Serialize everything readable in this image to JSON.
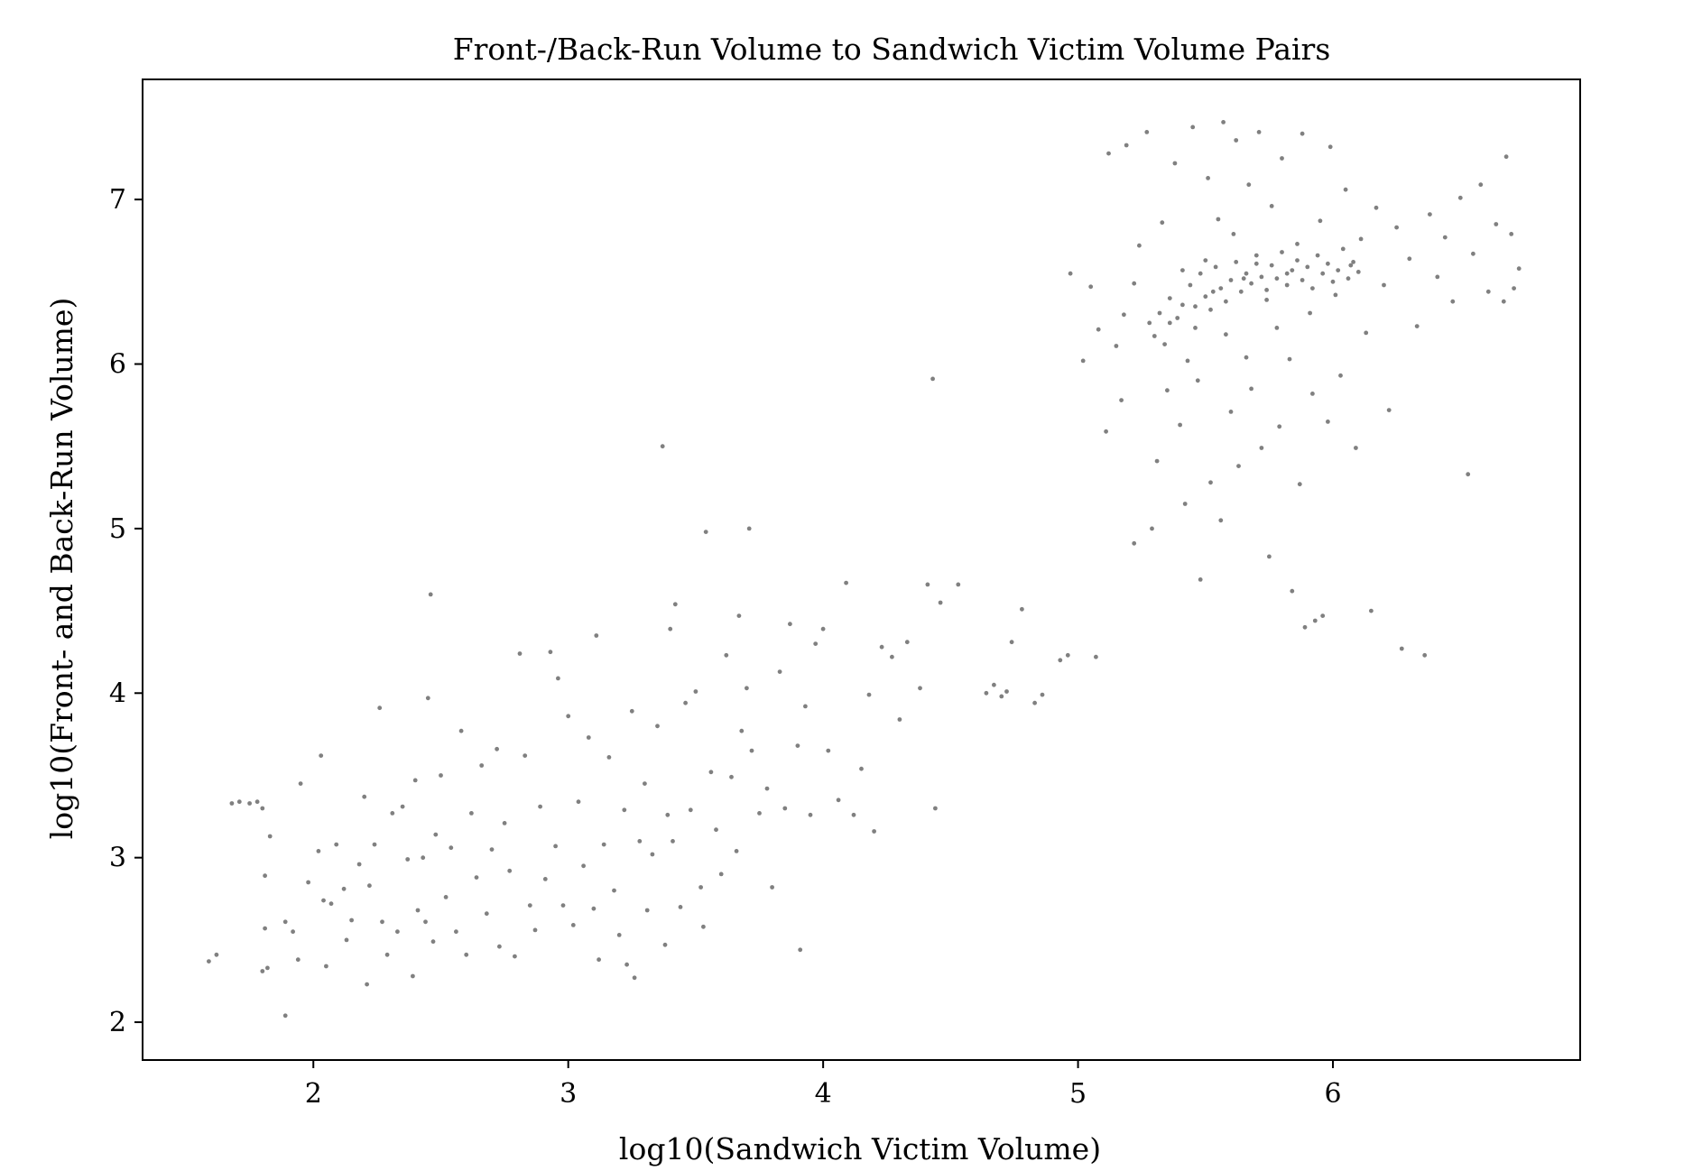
{
  "chart_data": {
    "type": "scatter",
    "title": "Front-/Back-Run Volume to Sandwich Victim Volume Pairs",
    "xlabel": "log10(Sandwich Victim Volume)",
    "ylabel": "log10(Front- and Back-Run Volume)",
    "xlim": [
      1.33,
      6.97
    ],
    "ylim": [
      1.77,
      7.73
    ],
    "xticks": [
      2,
      3,
      4,
      5,
      6
    ],
    "yticks": [
      2,
      3,
      4,
      5,
      6,
      7
    ],
    "grid": false,
    "legend": "none",
    "marker_color": "#808080",
    "series": [
      {
        "points": [
          [
            1.59,
            2.37
          ],
          [
            1.62,
            2.41
          ],
          [
            1.68,
            3.33
          ],
          [
            1.71,
            3.34
          ],
          [
            1.75,
            3.33
          ],
          [
            1.78,
            3.34
          ],
          [
            1.8,
            3.3
          ],
          [
            1.81,
            2.89
          ],
          [
            1.81,
            2.57
          ],
          [
            1.8,
            2.31
          ],
          [
            1.82,
            2.33
          ],
          [
            1.83,
            3.13
          ],
          [
            1.89,
            2.04
          ],
          [
            1.89,
            2.61
          ],
          [
            1.92,
            2.55
          ],
          [
            1.94,
            2.38
          ],
          [
            1.95,
            3.45
          ],
          [
            1.98,
            2.85
          ],
          [
            2.02,
            3.04
          ],
          [
            2.03,
            3.62
          ],
          [
            2.04,
            2.74
          ],
          [
            2.05,
            2.34
          ],
          [
            2.07,
            2.72
          ],
          [
            2.09,
            3.08
          ],
          [
            2.12,
            2.81
          ],
          [
            2.13,
            2.5
          ],
          [
            2.15,
            2.62
          ],
          [
            2.18,
            2.96
          ],
          [
            2.2,
            3.37
          ],
          [
            2.21,
            2.23
          ],
          [
            2.22,
            2.83
          ],
          [
            2.24,
            3.08
          ],
          [
            2.26,
            3.91
          ],
          [
            2.27,
            2.61
          ],
          [
            2.29,
            2.41
          ],
          [
            2.31,
            3.27
          ],
          [
            2.33,
            2.55
          ],
          [
            2.35,
            3.31
          ],
          [
            2.37,
            2.99
          ],
          [
            2.39,
            2.28
          ],
          [
            2.4,
            3.47
          ],
          [
            2.41,
            2.68
          ],
          [
            2.43,
            3.0
          ],
          [
            2.44,
            2.61
          ],
          [
            2.45,
            3.97
          ],
          [
            2.46,
            4.6
          ],
          [
            2.47,
            2.49
          ],
          [
            2.48,
            3.14
          ],
          [
            2.5,
            3.5
          ],
          [
            2.52,
            2.76
          ],
          [
            2.54,
            3.06
          ],
          [
            2.56,
            2.55
          ],
          [
            2.58,
            3.77
          ],
          [
            2.6,
            2.41
          ],
          [
            2.62,
            3.27
          ],
          [
            2.64,
            2.88
          ],
          [
            2.66,
            3.56
          ],
          [
            2.68,
            2.66
          ],
          [
            2.7,
            3.05
          ],
          [
            2.72,
            3.66
          ],
          [
            2.73,
            2.46
          ],
          [
            2.75,
            3.21
          ],
          [
            2.77,
            2.92
          ],
          [
            2.79,
            2.4
          ],
          [
            2.81,
            4.24
          ],
          [
            2.83,
            3.62
          ],
          [
            2.85,
            2.71
          ],
          [
            2.87,
            2.56
          ],
          [
            2.89,
            3.31
          ],
          [
            2.91,
            2.87
          ],
          [
            2.93,
            4.25
          ],
          [
            2.95,
            3.07
          ],
          [
            2.96,
            4.09
          ],
          [
            2.98,
            2.71
          ],
          [
            3.0,
            3.86
          ],
          [
            3.02,
            2.59
          ],
          [
            3.04,
            3.34
          ],
          [
            3.06,
            2.95
          ],
          [
            3.08,
            3.73
          ],
          [
            3.1,
            2.69
          ],
          [
            3.11,
            4.35
          ],
          [
            3.12,
            2.38
          ],
          [
            3.14,
            3.08
          ],
          [
            3.16,
            3.61
          ],
          [
            3.18,
            2.8
          ],
          [
            3.2,
            2.53
          ],
          [
            3.22,
            3.29
          ],
          [
            3.23,
            2.35
          ],
          [
            3.25,
            3.89
          ],
          [
            3.26,
            2.27
          ],
          [
            3.28,
            3.1
          ],
          [
            3.3,
            3.45
          ],
          [
            3.31,
            2.68
          ],
          [
            3.33,
            3.02
          ],
          [
            3.35,
            3.8
          ],
          [
            3.37,
            5.5
          ],
          [
            3.38,
            2.47
          ],
          [
            3.39,
            3.26
          ],
          [
            3.4,
            4.39
          ],
          [
            3.41,
            3.1
          ],
          [
            3.42,
            4.54
          ],
          [
            3.44,
            2.7
          ],
          [
            3.46,
            3.94
          ],
          [
            3.48,
            3.29
          ],
          [
            3.5,
            4.01
          ],
          [
            3.52,
            2.82
          ],
          [
            3.53,
            2.58
          ],
          [
            3.54,
            4.98
          ],
          [
            3.56,
            3.52
          ],
          [
            3.58,
            3.17
          ],
          [
            3.6,
            2.9
          ],
          [
            3.62,
            4.23
          ],
          [
            3.64,
            3.49
          ],
          [
            3.66,
            3.04
          ],
          [
            3.67,
            4.47
          ],
          [
            3.68,
            3.77
          ],
          [
            3.7,
            4.03
          ],
          [
            3.71,
            5.0
          ],
          [
            3.72,
            3.65
          ],
          [
            3.75,
            3.27
          ],
          [
            3.78,
            3.42
          ],
          [
            3.8,
            2.82
          ],
          [
            3.83,
            4.13
          ],
          [
            3.85,
            3.3
          ],
          [
            3.87,
            4.42
          ],
          [
            3.9,
            3.68
          ],
          [
            3.91,
            2.44
          ],
          [
            3.93,
            3.92
          ],
          [
            3.95,
            3.26
          ],
          [
            3.97,
            4.3
          ],
          [
            4.0,
            4.39
          ],
          [
            4.02,
            3.65
          ],
          [
            4.06,
            3.35
          ],
          [
            4.09,
            4.67
          ],
          [
            4.12,
            3.26
          ],
          [
            4.15,
            3.54
          ],
          [
            4.18,
            3.99
          ],
          [
            4.2,
            3.16
          ],
          [
            4.23,
            4.28
          ],
          [
            4.27,
            4.22
          ],
          [
            4.3,
            3.84
          ],
          [
            4.33,
            4.31
          ],
          [
            4.38,
            4.03
          ],
          [
            4.41,
            4.66
          ],
          [
            4.43,
            5.91
          ],
          [
            4.44,
            3.3
          ],
          [
            4.46,
            4.55
          ],
          [
            4.53,
            4.66
          ],
          [
            4.64,
            4.0
          ],
          [
            4.67,
            4.05
          ],
          [
            4.7,
            3.98
          ],
          [
            4.72,
            4.01
          ],
          [
            4.74,
            4.31
          ],
          [
            4.78,
            4.51
          ],
          [
            4.83,
            3.94
          ],
          [
            4.86,
            3.99
          ],
          [
            4.93,
            4.2
          ],
          [
            4.96,
            4.23
          ],
          [
            5.07,
            4.22
          ],
          [
            4.97,
            6.55
          ],
          [
            5.02,
            6.02
          ],
          [
            5.05,
            6.47
          ],
          [
            5.08,
            6.21
          ],
          [
            5.11,
            5.59
          ],
          [
            5.12,
            7.28
          ],
          [
            5.15,
            6.11
          ],
          [
            5.17,
            5.78
          ],
          [
            5.18,
            6.3
          ],
          [
            5.19,
            7.33
          ],
          [
            5.22,
            4.91
          ],
          [
            5.22,
            6.49
          ],
          [
            5.24,
            6.72
          ],
          [
            5.27,
            7.41
          ],
          [
            5.29,
            5.0
          ],
          [
            5.3,
            6.17
          ],
          [
            5.31,
            5.41
          ],
          [
            5.33,
            6.86
          ],
          [
            5.35,
            5.84
          ],
          [
            5.36,
            6.25
          ],
          [
            5.38,
            7.22
          ],
          [
            5.4,
            5.63
          ],
          [
            5.41,
            6.57
          ],
          [
            5.42,
            5.15
          ],
          [
            5.43,
            6.02
          ],
          [
            5.45,
            7.44
          ],
          [
            5.46,
            6.35
          ],
          [
            5.47,
            5.9
          ],
          [
            5.48,
            4.69
          ],
          [
            5.5,
            6.63
          ],
          [
            5.51,
            7.13
          ],
          [
            5.52,
            5.28
          ],
          [
            5.53,
            6.44
          ],
          [
            5.55,
            6.88
          ],
          [
            5.56,
            5.05
          ],
          [
            5.57,
            7.47
          ],
          [
            5.58,
            6.18
          ],
          [
            5.6,
            5.71
          ],
          [
            5.61,
            6.79
          ],
          [
            5.62,
            7.36
          ],
          [
            5.63,
            5.38
          ],
          [
            5.65,
            6.52
          ],
          [
            5.66,
            6.04
          ],
          [
            5.67,
            7.09
          ],
          [
            5.68,
            5.85
          ],
          [
            5.7,
            6.61
          ],
          [
            5.71,
            7.41
          ],
          [
            5.72,
            5.49
          ],
          [
            5.74,
            6.39
          ],
          [
            5.75,
            4.83
          ],
          [
            5.76,
            6.96
          ],
          [
            5.78,
            6.22
          ],
          [
            5.79,
            5.62
          ],
          [
            5.8,
            7.25
          ],
          [
            5.82,
            6.55
          ],
          [
            5.83,
            6.03
          ],
          [
            5.84,
            4.62
          ],
          [
            5.86,
            6.73
          ],
          [
            5.87,
            5.27
          ],
          [
            5.88,
            7.4
          ],
          [
            5.89,
            4.4
          ],
          [
            5.91,
            6.31
          ],
          [
            5.92,
            5.82
          ],
          [
            5.93,
            4.44
          ],
          [
            5.95,
            6.87
          ],
          [
            5.96,
            4.47
          ],
          [
            5.98,
            5.65
          ],
          [
            5.99,
            7.32
          ],
          [
            6.01,
            6.42
          ],
          [
            6.03,
            5.93
          ],
          [
            6.05,
            7.06
          ],
          [
            6.07,
            6.6
          ],
          [
            6.09,
            5.49
          ],
          [
            6.11,
            6.76
          ],
          [
            6.13,
            6.19
          ],
          [
            6.15,
            4.5
          ],
          [
            6.17,
            6.95
          ],
          [
            6.2,
            6.48
          ],
          [
            6.22,
            5.72
          ],
          [
            6.25,
            6.83
          ],
          [
            6.27,
            4.27
          ],
          [
            6.3,
            6.64
          ],
          [
            6.33,
            6.23
          ],
          [
            6.36,
            4.23
          ],
          [
            6.38,
            6.91
          ],
          [
            6.41,
            6.53
          ],
          [
            6.44,
            6.77
          ],
          [
            6.47,
            6.38
          ],
          [
            6.5,
            7.01
          ],
          [
            6.53,
            5.33
          ],
          [
            6.55,
            6.67
          ],
          [
            6.58,
            7.09
          ],
          [
            6.61,
            6.44
          ],
          [
            6.64,
            6.85
          ],
          [
            6.67,
            6.38
          ],
          [
            6.68,
            7.26
          ],
          [
            6.7,
            6.79
          ],
          [
            6.71,
            6.46
          ],
          [
            6.73,
            6.58
          ],
          [
            5.28,
            6.25
          ],
          [
            5.32,
            6.31
          ],
          [
            5.34,
            6.12
          ],
          [
            5.36,
            6.4
          ],
          [
            5.39,
            6.28
          ],
          [
            5.41,
            6.36
          ],
          [
            5.44,
            6.48
          ],
          [
            5.46,
            6.22
          ],
          [
            5.48,
            6.55
          ],
          [
            5.5,
            6.41
          ],
          [
            5.52,
            6.33
          ],
          [
            5.54,
            6.59
          ],
          [
            5.56,
            6.46
          ],
          [
            5.58,
            6.38
          ],
          [
            5.6,
            6.51
          ],
          [
            5.62,
            6.62
          ],
          [
            5.64,
            6.44
          ],
          [
            5.66,
            6.55
          ],
          [
            5.68,
            6.49
          ],
          [
            5.7,
            6.66
          ],
          [
            5.72,
            6.53
          ],
          [
            5.74,
            6.45
          ],
          [
            5.76,
            6.6
          ],
          [
            5.78,
            6.52
          ],
          [
            5.8,
            6.68
          ],
          [
            5.82,
            6.48
          ],
          [
            5.84,
            6.57
          ],
          [
            5.86,
            6.63
          ],
          [
            5.88,
            6.51
          ],
          [
            5.9,
            6.59
          ],
          [
            5.92,
            6.46
          ],
          [
            5.94,
            6.66
          ],
          [
            5.96,
            6.55
          ],
          [
            5.98,
            6.61
          ],
          [
            6.0,
            6.5
          ],
          [
            6.02,
            6.57
          ],
          [
            6.04,
            6.7
          ],
          [
            6.06,
            6.52
          ],
          [
            6.08,
            6.62
          ],
          [
            6.1,
            6.56
          ]
        ]
      }
    ]
  }
}
